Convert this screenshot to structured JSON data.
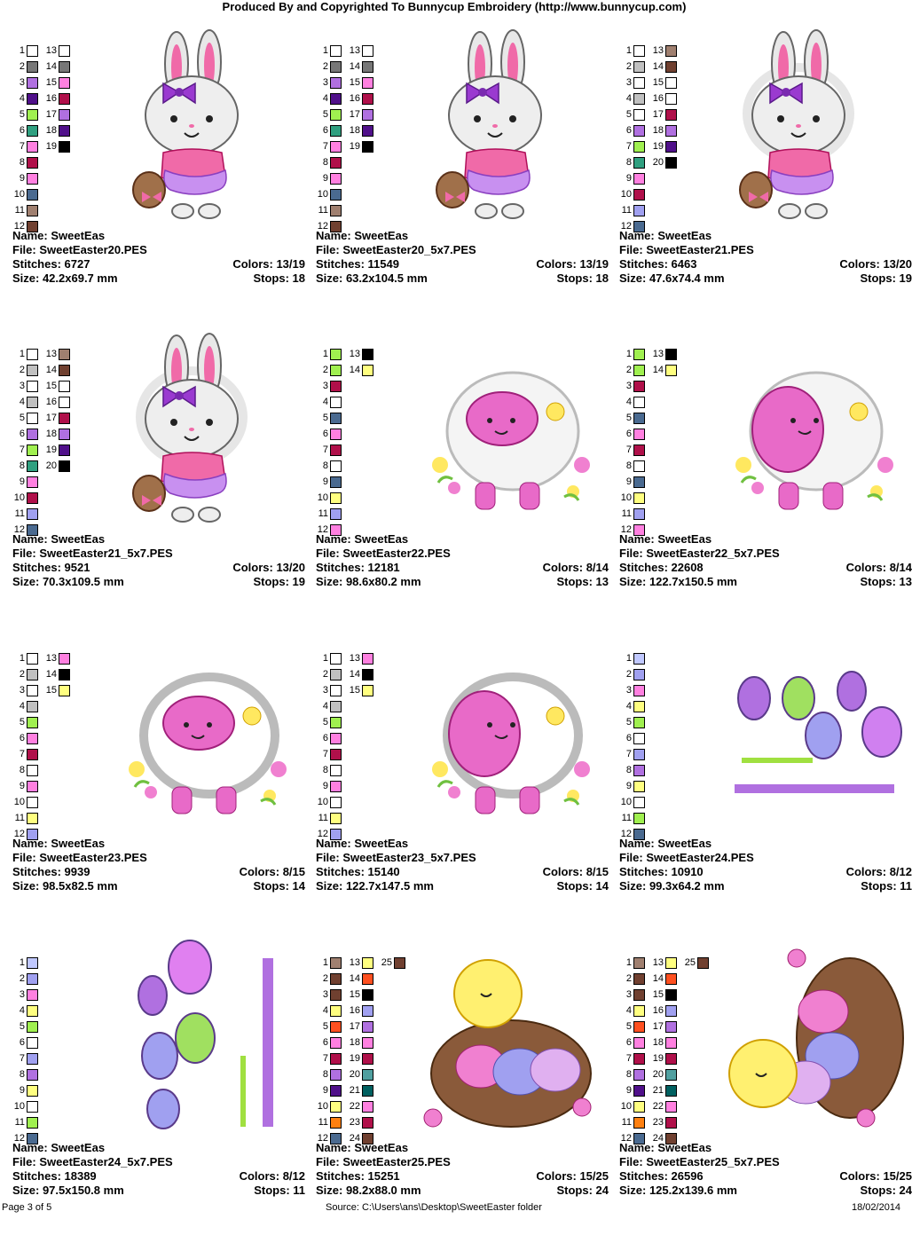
{
  "header": "Produced By and Copyrighted To Bunnycup Embroidery (http://www.bunnycup.com)",
  "footer": {
    "page": "Page 3 of 5",
    "source": "Source: C:\\Users\\ans\\Desktop\\SweetEaster folder",
    "date": "18/02/2014"
  },
  "labels": {
    "name": "Name:",
    "file": "File:",
    "stitches": "Stitches:",
    "size": "Size:",
    "colors": "Colors:",
    "stops": "Stops:"
  },
  "designs": [
    {
      "name": "SweetEas",
      "file": "SweetEaster20.PES",
      "stitches": "6727",
      "size": "42.2x69.7 mm",
      "colors": "13/19",
      "stops": "18",
      "art": "bunny",
      "palette": [
        [
          "#ffffff",
          "#ffffff"
        ],
        [
          "#777777",
          "#777777"
        ],
        [
          "#b070e0",
          "#ff80e0"
        ],
        [
          "#50108a",
          "#b0104a"
        ],
        [
          "#a0f050",
          "#b070e0"
        ],
        [
          "#30a080",
          "#50108a"
        ],
        [
          "#ff80e0",
          "#000000"
        ],
        [
          "#b0104a",
          null
        ],
        [
          "#ff80e0",
          null
        ],
        [
          "#4a6a90",
          null
        ],
        [
          "#a08070",
          null
        ],
        [
          "#704030",
          null
        ],
        [
          null,
          null
        ],
        [
          null,
          null
        ]
      ]
    },
    {
      "name": "SweetEas",
      "file": "SweetEaster20_5x7.PES",
      "stitches": "11549",
      "size": "63.2x104.5 mm",
      "colors": "13/19",
      "stops": "18",
      "art": "bunny",
      "palette": [
        [
          "#ffffff",
          "#ffffff"
        ],
        [
          "#777777",
          "#777777"
        ],
        [
          "#b070e0",
          "#ff80e0"
        ],
        [
          "#50108a",
          "#b0104a"
        ],
        [
          "#a0f050",
          "#b070e0"
        ],
        [
          "#30a080",
          "#50108a"
        ],
        [
          "#ff80e0",
          "#000000"
        ],
        [
          "#b0104a",
          null
        ],
        [
          "#ff80e0",
          null
        ],
        [
          "#4a6a90",
          null
        ],
        [
          "#a08070",
          null
        ],
        [
          "#704030",
          null
        ],
        [
          null,
          null
        ],
        [
          null,
          null
        ]
      ]
    },
    {
      "name": "SweetEas",
      "file": "SweetEaster21.PES",
      "stitches": "6463",
      "size": "47.6x74.4 mm",
      "colors": "13/20",
      "stops": "19",
      "art": "bunny-applique",
      "palette": [
        [
          "#ffffff",
          "#a08070"
        ],
        [
          "#c0c0c0",
          "#704030"
        ],
        [
          "#ffffff",
          "#ffffff"
        ],
        [
          "#c0c0c0",
          "#ffffff"
        ],
        [
          "#ffffff",
          "#b0104a"
        ],
        [
          "#b070e0",
          "#b070e0"
        ],
        [
          "#a0f050",
          "#50108a"
        ],
        [
          "#30a080",
          "#000000"
        ],
        [
          "#ff80e0",
          null
        ],
        [
          "#b0104a",
          null
        ],
        [
          "#a0a0f0",
          null
        ],
        [
          "#4a6a90",
          null
        ],
        [
          null,
          null
        ],
        [
          null,
          null
        ]
      ]
    },
    {
      "name": "SweetEas",
      "file": "SweetEaster21_5x7.PES",
      "stitches": "9521",
      "size": "70.3x109.5 mm",
      "colors": "13/20",
      "stops": "19",
      "art": "bunny-applique",
      "palette": [
        [
          "#ffffff",
          "#a08070"
        ],
        [
          "#c0c0c0",
          "#704030"
        ],
        [
          "#ffffff",
          "#ffffff"
        ],
        [
          "#c0c0c0",
          "#ffffff"
        ],
        [
          "#ffffff",
          "#b0104a"
        ],
        [
          "#b070e0",
          "#b070e0"
        ],
        [
          "#a0f050",
          "#50108a"
        ],
        [
          "#30a080",
          "#000000"
        ],
        [
          "#ff80e0",
          null
        ],
        [
          "#b0104a",
          null
        ],
        [
          "#a0a0f0",
          null
        ],
        [
          "#4a6a90",
          null
        ],
        [
          null,
          null
        ],
        [
          null,
          null
        ]
      ]
    },
    {
      "name": "SweetEas",
      "file": "SweetEaster22.PES",
      "stitches": "12181",
      "size": "98.6x80.2 mm",
      "colors": "8/14",
      "stops": "13",
      "art": "lamb",
      "palette": [
        [
          "#a0f050",
          "#000000"
        ],
        [
          "#a0f050",
          "#ffff80"
        ],
        [
          "#b0104a",
          null
        ],
        [
          "#ffffff",
          null
        ],
        [
          "#4a6a90",
          null
        ],
        [
          "#ff80e0",
          null
        ],
        [
          "#b0104a",
          null
        ],
        [
          "#ffffff",
          null
        ],
        [
          "#4a6a90",
          null
        ],
        [
          "#ffff80",
          null
        ],
        [
          "#a0a0f0",
          null
        ],
        [
          "#ff80e0",
          null
        ],
        [
          null,
          null
        ],
        [
          null,
          null
        ]
      ]
    },
    {
      "name": "SweetEas",
      "file": "SweetEaster22_5x7.PES",
      "stitches": "22608",
      "size": "122.7x150.5 mm",
      "colors": "8/14",
      "stops": "13",
      "art": "lamb-side",
      "palette": [
        [
          "#a0f050",
          "#000000"
        ],
        [
          "#a0f050",
          "#ffff80"
        ],
        [
          "#b0104a",
          null
        ],
        [
          "#ffffff",
          null
        ],
        [
          "#4a6a90",
          null
        ],
        [
          "#ff80e0",
          null
        ],
        [
          "#b0104a",
          null
        ],
        [
          "#ffffff",
          null
        ],
        [
          "#4a6a90",
          null
        ],
        [
          "#ffff80",
          null
        ],
        [
          "#a0a0f0",
          null
        ],
        [
          "#ff80e0",
          null
        ],
        [
          null,
          null
        ],
        [
          null,
          null
        ]
      ]
    },
    {
      "name": "SweetEas",
      "file": "SweetEaster23.PES",
      "stitches": "9939",
      "size": "98.5x82.5 mm",
      "colors": "8/15",
      "stops": "14",
      "art": "lamb-applique",
      "palette": [
        [
          "#ffffff",
          "#ff80e0"
        ],
        [
          "#c0c0c0",
          "#000000"
        ],
        [
          "#ffffff",
          "#ffff80"
        ],
        [
          "#c0c0c0",
          null
        ],
        [
          "#a0f050",
          null
        ],
        [
          "#ff80e0",
          null
        ],
        [
          "#b0104a",
          null
        ],
        [
          "#ffffff",
          null
        ],
        [
          "#ff80e0",
          null
        ],
        [
          "#ffffff",
          null
        ],
        [
          "#ffff80",
          null
        ],
        [
          "#a0a0f0",
          null
        ],
        [
          null,
          null
        ],
        [
          null,
          null
        ]
      ]
    },
    {
      "name": "SweetEas",
      "file": "SweetEaster23_5x7.PES",
      "stitches": "15140",
      "size": "122.7x147.5 mm",
      "colors": "8/15",
      "stops": "14",
      "art": "lamb-applique-side",
      "palette": [
        [
          "#ffffff",
          "#ff80e0"
        ],
        [
          "#c0c0c0",
          "#000000"
        ],
        [
          "#ffffff",
          "#ffff80"
        ],
        [
          "#c0c0c0",
          null
        ],
        [
          "#a0f050",
          null
        ],
        [
          "#ff80e0",
          null
        ],
        [
          "#b0104a",
          null
        ],
        [
          "#ffffff",
          null
        ],
        [
          "#ff80e0",
          null
        ],
        [
          "#ffffff",
          null
        ],
        [
          "#ffff80",
          null
        ],
        [
          "#a0a0f0",
          null
        ],
        [
          null,
          null
        ],
        [
          null,
          null
        ]
      ]
    },
    {
      "name": "SweetEas",
      "file": "SweetEaster24.PES",
      "stitches": "10910",
      "size": "99.3x64.2 mm",
      "colors": "8/12",
      "stops": "11",
      "art": "eggs",
      "palette": [
        [
          "#c0c8ff",
          null
        ],
        [
          "#a0a0f0",
          null
        ],
        [
          "#ff80e0",
          null
        ],
        [
          "#ffff80",
          null
        ],
        [
          "#a0f050",
          null
        ],
        [
          "#ffffff",
          null
        ],
        [
          "#a0a0f0",
          null
        ],
        [
          "#b070e0",
          null
        ],
        [
          "#ffff80",
          null
        ],
        [
          "#ffffff",
          null
        ],
        [
          "#a0f050",
          null
        ],
        [
          "#4a6a90",
          null
        ],
        [
          null,
          null
        ],
        [
          null,
          null
        ]
      ]
    },
    {
      "name": "SweetEas",
      "file": "SweetEaster24_5x7.PES",
      "stitches": "18389",
      "size": "97.5x150.8 mm",
      "colors": "8/12",
      "stops": "11",
      "art": "eggs-vertical",
      "palette": [
        [
          "#c0c8ff",
          null
        ],
        [
          "#a0a0f0",
          null
        ],
        [
          "#ff80e0",
          null
        ],
        [
          "#ffff80",
          null
        ],
        [
          "#a0f050",
          null
        ],
        [
          "#ffffff",
          null
        ],
        [
          "#a0a0f0",
          null
        ],
        [
          "#b070e0",
          null
        ],
        [
          "#ffff80",
          null
        ],
        [
          "#ffffff",
          null
        ],
        [
          "#a0f050",
          null
        ],
        [
          "#4a6a90",
          null
        ],
        [
          null,
          null
        ],
        [
          null,
          null
        ]
      ]
    },
    {
      "name": "SweetEas",
      "file": "SweetEaster25.PES",
      "stitches": "15251",
      "size": "98.2x88.0 mm",
      "colors": "15/25",
      "stops": "24",
      "art": "chick-basket",
      "palette": [
        [
          "#a08070",
          "#ffff80",
          "#704030"
        ],
        [
          "#704030",
          "#ff5020",
          null
        ],
        [
          "#704030",
          "#000000",
          null
        ],
        [
          "#ffff80",
          "#a0a0f0",
          null
        ],
        [
          "#ff5020",
          "#b070e0",
          null
        ],
        [
          "#ff80e0",
          "#ff80e0",
          null
        ],
        [
          "#b0104a",
          "#b0104a",
          null
        ],
        [
          "#b070e0",
          "#50a0a0",
          null
        ],
        [
          "#50108a",
          "#006060",
          null
        ],
        [
          "#ffff80",
          "#ff80e0",
          null
        ],
        [
          "#ff8010",
          "#b0104a",
          null
        ],
        [
          "#4a6a90",
          "#704030",
          null
        ],
        [
          null,
          null,
          null
        ],
        [
          null,
          null,
          null
        ]
      ]
    },
    {
      "name": "SweetEas",
      "file": "SweetEaster25_5x7.PES",
      "stitches": "26596",
      "size": "125.2x139.6 mm",
      "colors": "15/25",
      "stops": "24",
      "art": "chick-basket-side",
      "palette": [
        [
          "#a08070",
          "#ffff80",
          "#704030"
        ],
        [
          "#704030",
          "#ff5020",
          null
        ],
        [
          "#704030",
          "#000000",
          null
        ],
        [
          "#ffff80",
          "#a0a0f0",
          null
        ],
        [
          "#ff5020",
          "#b070e0",
          null
        ],
        [
          "#ff80e0",
          "#ff80e0",
          null
        ],
        [
          "#b0104a",
          "#b0104a",
          null
        ],
        [
          "#b070e0",
          "#50a0a0",
          null
        ],
        [
          "#50108a",
          "#006060",
          null
        ],
        [
          "#ffff80",
          "#ff80e0",
          null
        ],
        [
          "#ff8010",
          "#b0104a",
          null
        ],
        [
          "#4a6a90",
          "#704030",
          null
        ],
        [
          null,
          null,
          null
        ],
        [
          null,
          null,
          null
        ]
      ]
    }
  ]
}
